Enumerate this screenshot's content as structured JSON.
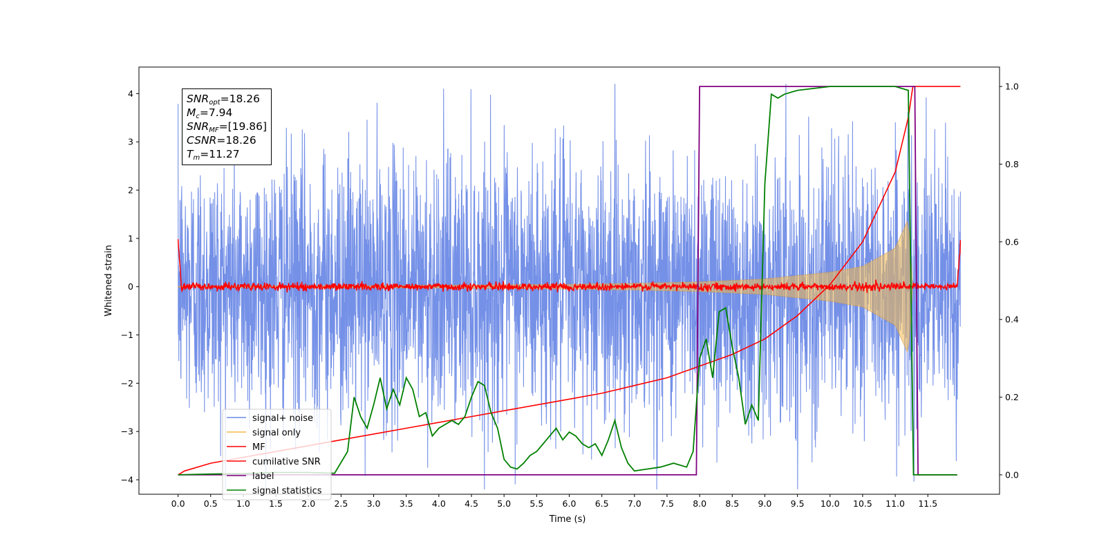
{
  "chart_data": {
    "type": "line",
    "xlabel": "Time (s)",
    "ylabel_left": "Whitened strain",
    "ylabel_right": "",
    "xlim": [
      -0.6,
      12.6
    ],
    "ylim_left": [
      -4.3,
      4.55
    ],
    "ylim_right": [
      -0.05,
      1.05
    ],
    "x_ticks": [
      "0.0",
      "0.5",
      "1.0",
      "1.5",
      "2.0",
      "2.5",
      "3.0",
      "3.5",
      "4.0",
      "4.5",
      "5.0",
      "5.5",
      "6.0",
      "6.5",
      "7.0",
      "7.5",
      "8.0",
      "8.5",
      "9.0",
      "9.5",
      "10.0",
      "10.5",
      "11.0",
      "11.5"
    ],
    "y_ticks_left": [
      "4",
      "3",
      "2",
      "1",
      "0",
      "−1",
      "−2",
      "−3",
      "−4"
    ],
    "y_ticks_right": [
      "1.0",
      "0.8",
      "0.6",
      "0.4",
      "0.2",
      "0.0"
    ],
    "grid": false,
    "legend_position": "lower-left",
    "legend": [
      {
        "label": "signal+ noise",
        "color": "#6d8ae6"
      },
      {
        "label": "signal only",
        "color": "#f5b94a"
      },
      {
        "label": "MF",
        "color": "#ff0000"
      },
      {
        "label": "cumilative SNR",
        "color": "#ff0000"
      },
      {
        "label": "label",
        "color": "#800080"
      },
      {
        "label": "signal statistics",
        "color": "#008000"
      }
    ],
    "annotation": {
      "snr_opt": {
        "name": "SNR",
        "sub": "opt",
        "value": "=18.26"
      },
      "mc": {
        "name": "M",
        "sub": "c",
        "value": "=7.94"
      },
      "snr_mf": {
        "name": "SNR",
        "sub": "MF",
        "value": "=[19.86]"
      },
      "csnr": {
        "name": "CSNR",
        "sub": "",
        "value": "=18.26"
      },
      "tm": {
        "name": "T",
        "sub": "m",
        "value": "=11.27"
      }
    },
    "series": [
      {
        "name": "signal+ noise",
        "axis": "left",
        "color": "#6d8ae6",
        "description_range": [
          0.0,
          12.0
        ],
        "typical_amplitude": 2.2,
        "peak_amplitude": 4.2
      },
      {
        "name": "signal only",
        "axis": "left",
        "color": "#f5b94a",
        "x": [
          0.0,
          2.0,
          4.0,
          6.0,
          7.0,
          8.0,
          9.0,
          10.0,
          10.5,
          11.0,
          11.2,
          11.27
        ],
        "envelope": [
          0.01,
          0.02,
          0.03,
          0.05,
          0.07,
          0.1,
          0.16,
          0.3,
          0.42,
          0.8,
          1.4,
          0.0
        ]
      },
      {
        "name": "MF",
        "axis": "left",
        "color": "#ff0000",
        "x": [
          0.0,
          0.05,
          11.95,
          12.0
        ],
        "y": [
          1.0,
          0.0,
          0.0,
          0.9
        ]
      },
      {
        "name": "cumilative SNR",
        "axis": "right",
        "color": "#ff0000",
        "x": [
          0.0,
          0.1,
          0.5,
          1.0,
          1.5,
          2.0,
          2.5,
          3.0,
          3.5,
          4.0,
          4.5,
          5.0,
          5.5,
          6.0,
          6.5,
          7.0,
          7.5,
          8.0,
          8.5,
          9.0,
          9.5,
          10.0,
          10.5,
          11.0,
          11.2,
          11.27,
          12.0
        ],
        "y": [
          0.0,
          0.01,
          0.03,
          0.045,
          0.06,
          0.075,
          0.09,
          0.105,
          0.12,
          0.135,
          0.15,
          0.165,
          0.18,
          0.195,
          0.21,
          0.23,
          0.25,
          0.28,
          0.31,
          0.35,
          0.41,
          0.49,
          0.6,
          0.78,
          0.92,
          1.0,
          1.0
        ]
      },
      {
        "name": "label",
        "axis": "right",
        "color": "#800080",
        "x": [
          0.0,
          7.95,
          8.0,
          11.3,
          11.35,
          11.95
        ],
        "y": [
          0.0,
          0.0,
          1.0,
          1.0,
          0.0,
          0.0
        ]
      },
      {
        "name": "signal statistics",
        "axis": "right",
        "color": "#008000",
        "x": [
          0.0,
          0.5,
          1.0,
          1.5,
          2.0,
          2.4,
          2.6,
          2.7,
          2.8,
          2.9,
          3.0,
          3.1,
          3.2,
          3.3,
          3.4,
          3.5,
          3.6,
          3.7,
          3.8,
          3.9,
          4.0,
          4.1,
          4.2,
          4.3,
          4.4,
          4.5,
          4.6,
          4.7,
          4.8,
          4.9,
          5.0,
          5.1,
          5.2,
          5.3,
          5.4,
          5.5,
          5.6,
          5.7,
          5.8,
          5.9,
          6.0,
          6.1,
          6.2,
          6.3,
          6.4,
          6.5,
          6.6,
          6.7,
          6.8,
          6.9,
          7.0,
          7.2,
          7.4,
          7.6,
          7.8,
          7.9,
          8.0,
          8.1,
          8.2,
          8.3,
          8.4,
          8.5,
          8.6,
          8.7,
          8.8,
          8.9,
          9.0,
          9.1,
          9.2,
          9.3,
          9.5,
          10.0,
          10.5,
          11.0,
          11.2,
          11.28,
          11.3,
          11.6,
          11.95
        ],
        "y": [
          0.0,
          0.002,
          0.003,
          0.006,
          0.006,
          0.004,
          0.06,
          0.2,
          0.15,
          0.12,
          0.18,
          0.25,
          0.17,
          0.22,
          0.18,
          0.25,
          0.22,
          0.15,
          0.16,
          0.1,
          0.12,
          0.13,
          0.14,
          0.13,
          0.15,
          0.2,
          0.24,
          0.23,
          0.16,
          0.12,
          0.04,
          0.02,
          0.015,
          0.03,
          0.05,
          0.06,
          0.08,
          0.1,
          0.12,
          0.09,
          0.11,
          0.1,
          0.08,
          0.07,
          0.08,
          0.05,
          0.09,
          0.14,
          0.07,
          0.03,
          0.01,
          0.015,
          0.02,
          0.03,
          0.02,
          0.06,
          0.3,
          0.35,
          0.25,
          0.42,
          0.43,
          0.33,
          0.25,
          0.13,
          0.18,
          0.14,
          0.75,
          0.98,
          0.97,
          0.98,
          0.99,
          1.0,
          1.0,
          1.0,
          0.99,
          0.0,
          0.0,
          0.0,
          0.0
        ]
      }
    ]
  }
}
